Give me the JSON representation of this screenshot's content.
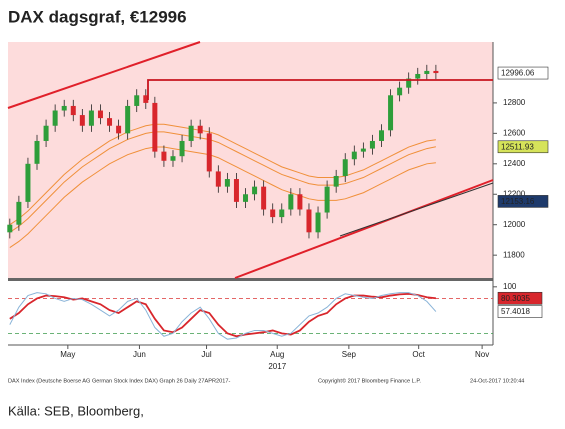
{
  "chart_data": [
    {
      "type": "candlestick",
      "title": "DAX dagsgraf, €12996",
      "xlabel": "2017",
      "xlim": [
        -0.2,
        53.3
      ],
      "xticks": [
        {
          "value": 6.4,
          "label": "May"
        },
        {
          "value": 14.3,
          "label": "Jun"
        },
        {
          "value": 21.7,
          "label": "Jul"
        },
        {
          "value": 29.5,
          "label": "Aug"
        },
        {
          "value": 37.4,
          "label": "Sep"
        },
        {
          "value": 45.1,
          "label": "Oct"
        },
        {
          "value": 52.1,
          "label": "Nov"
        }
      ],
      "ylim": [
        11650,
        13200
      ],
      "yticks": [
        11800,
        12000,
        12200,
        12400,
        12600,
        12800
      ],
      "up_color": "#2e9e3a",
      "down_color": "#d8262c",
      "background": "#fddcdc",
      "band_color": "#f0903a",
      "open": [
        11950,
        12000,
        12150,
        12400,
        12550,
        12650,
        12750,
        12780,
        12720,
        12650,
        12750,
        12700,
        12650,
        12600,
        12780,
        12850,
        12800,
        12480,
        12420,
        12450,
        12550,
        12650,
        12600,
        12350,
        12250,
        12300,
        12150,
        12200,
        12250,
        12100,
        12050,
        12100,
        12200,
        12100,
        11950,
        12080,
        12250,
        12320,
        12430,
        12480,
        12500,
        12550,
        12620,
        12850,
        12900,
        12960,
        12990,
        13010
      ],
      "high": [
        12040,
        12190,
        12440,
        12590,
        12690,
        12790,
        12820,
        12820,
        12760,
        12790,
        12790,
        12740,
        12690,
        12820,
        12890,
        12890,
        12840,
        12520,
        12490,
        12590,
        12690,
        12690,
        12640,
        12390,
        12340,
        12340,
        12240,
        12290,
        12290,
        12140,
        12140,
        12240,
        12240,
        12140,
        12120,
        12290,
        12360,
        12470,
        12520,
        12540,
        12590,
        12660,
        12890,
        12940,
        13000,
        13030,
        13050,
        13050
      ],
      "low": [
        11910,
        11960,
        12110,
        12360,
        12510,
        12610,
        12710,
        12680,
        12610,
        12610,
        12660,
        12610,
        12560,
        12560,
        12740,
        12760,
        12440,
        12380,
        12380,
        12410,
        12510,
        12560,
        12310,
        12210,
        12210,
        12110,
        12110,
        12160,
        12060,
        12010,
        12010,
        12060,
        12060,
        11910,
        11910,
        12040,
        12210,
        12280,
        12390,
        12440,
        12460,
        12510,
        12580,
        12810,
        12860,
        12920,
        12950,
        12956
      ],
      "close": [
        12000,
        12150,
        12400,
        12550,
        12650,
        12750,
        12780,
        12720,
        12650,
        12750,
        12700,
        12650,
        12600,
        12780,
        12850,
        12800,
        12480,
        12420,
        12450,
        12550,
        12650,
        12600,
        12350,
        12250,
        12300,
        12150,
        12200,
        12250,
        12100,
        12050,
        12100,
        12200,
        12100,
        11950,
        12080,
        12250,
        12320,
        12430,
        12480,
        12500,
        12550,
        12620,
        12850,
        12900,
        12960,
        12990,
        13010,
        12996
      ],
      "bands": [
        {
          "values": [
            12000,
            12040,
            12090,
            12150,
            12210,
            12270,
            12330,
            12380,
            12430,
            12470,
            12510,
            12550,
            12580,
            12610,
            12630,
            12650,
            12660,
            12660,
            12650,
            12640,
            12630,
            12620,
            12610,
            12590,
            12560,
            12530,
            12500,
            12470,
            12440,
            12410,
            12380,
            12360,
            12340,
            12320,
            12310,
            12310,
            12310,
            12320,
            12340,
            12360,
            12390,
            12420,
            12450,
            12480,
            12510,
            12530,
            12550,
            12558
          ]
        },
        {
          "values": [
            11950,
            11990,
            12040,
            12100,
            12160,
            12220,
            12280,
            12330,
            12380,
            12420,
            12460,
            12500,
            12530,
            12560,
            12580,
            12600,
            12610,
            12610,
            12600,
            12590,
            12580,
            12570,
            12560,
            12540,
            12510,
            12480,
            12450,
            12420,
            12390,
            12360,
            12330,
            12310,
            12290,
            12270,
            12260,
            12260,
            12260,
            12270,
            12290,
            12310,
            12340,
            12370,
            12400,
            12430,
            12460,
            12480,
            12500,
            12512
          ]
        },
        {
          "values": [
            11850,
            11890,
            11940,
            12000,
            12060,
            12120,
            12180,
            12230,
            12280,
            12320,
            12360,
            12400,
            12430,
            12460,
            12480,
            12500,
            12510,
            12510,
            12500,
            12490,
            12480,
            12470,
            12460,
            12440,
            12410,
            12380,
            12350,
            12320,
            12290,
            12260,
            12230,
            12210,
            12190,
            12170,
            12160,
            12160,
            12160,
            12170,
            12190,
            12210,
            12240,
            12270,
            12300,
            12330,
            12360,
            12380,
            12400,
            12407
          ]
        }
      ],
      "price_labels": [
        12996.06,
        12511.93,
        12153.16
      ],
      "price_label_colors": [
        "#ffffff",
        "#d6e35a",
        "#1e3a6b"
      ],
      "price_label_text_colors": [
        "#111111",
        "#111111",
        "#ffffff"
      ]
    },
    {
      "type": "line",
      "ylim": [
        0,
        110
      ],
      "yticks": [
        100
      ],
      "levels": [
        80,
        20
      ],
      "level_colors": [
        "#e05050",
        "#3a9a4a"
      ],
      "series": [
        {
          "color": "#d8262c",
          "values": [
            45,
            55,
            70,
            80,
            85,
            84,
            82,
            78,
            80,
            75,
            70,
            60,
            55,
            65,
            75,
            70,
            45,
            25,
            22,
            30,
            45,
            60,
            55,
            35,
            20,
            15,
            18,
            20,
            22,
            25,
            20,
            18,
            25,
            40,
            50,
            55,
            70,
            80,
            85,
            85,
            83,
            82,
            85,
            87,
            88,
            86,
            82,
            80.3035
          ]
        },
        {
          "color": "#8ab4d8",
          "values": [
            35,
            65,
            85,
            90,
            88,
            80,
            75,
            80,
            78,
            70,
            60,
            50,
            60,
            75,
            80,
            60,
            30,
            15,
            20,
            40,
            55,
            65,
            45,
            20,
            10,
            12,
            20,
            25,
            25,
            20,
            15,
            20,
            35,
            50,
            55,
            65,
            80,
            88,
            85,
            82,
            80,
            85,
            88,
            90,
            90,
            85,
            75,
            57.4018
          ]
        }
      ],
      "end_labels": [
        80.3035,
        57.4018
      ],
      "end_label_colors": [
        "#d8262c",
        "#ffffff"
      ],
      "end_label_text_colors": [
        "#ffffff",
        "#111111"
      ]
    }
  ],
  "footer": {
    "left": "DAX Index (Deutsche Boerse AG German Stock Index DAX) Graph 26  Daily 27APR2017-",
    "middle": "Copyright© 2017 Bloomberg Finance L.P.",
    "right": "24-Oct-2017 10:20:44"
  },
  "source": "Källa: SEB, Bloomberg,"
}
